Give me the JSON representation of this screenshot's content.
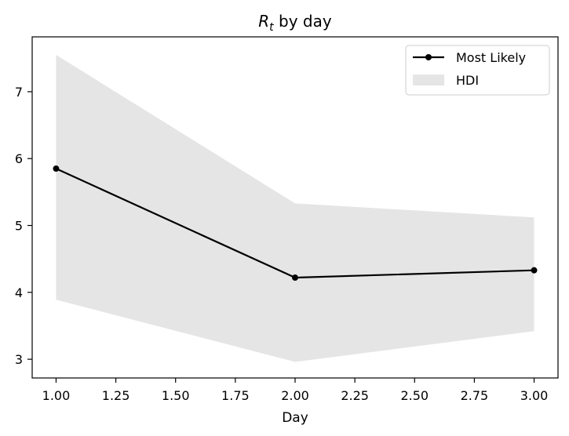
{
  "chart_data": {
    "type": "line",
    "title_main": "R",
    "title_sub": "t",
    "title_rest": " by day",
    "xlabel": "Day",
    "ylabel": "",
    "xlim": [
      0.9,
      3.1
    ],
    "ylim": [
      2.72,
      7.82
    ],
    "xticks": [
      1.0,
      1.25,
      1.5,
      1.75,
      2.0,
      2.25,
      2.5,
      2.75,
      3.0
    ],
    "xtick_labels": [
      "1.00",
      "1.25",
      "1.50",
      "1.75",
      "2.00",
      "2.25",
      "2.50",
      "2.75",
      "3.00"
    ],
    "yticks": [
      3,
      4,
      5,
      6,
      7
    ],
    "ytick_labels": [
      "3",
      "4",
      "5",
      "6",
      "7"
    ],
    "grid": false,
    "legend_position": "top-right",
    "series": [
      {
        "name": "Most Likely",
        "x": [
          1.0,
          2.0,
          3.0
        ],
        "y": [
          5.85,
          4.22,
          4.33
        ],
        "color": "#000000"
      }
    ],
    "bands": [
      {
        "name": "HDI",
        "x": [
          1.0,
          2.0,
          3.0
        ],
        "lower": [
          3.89,
          2.96,
          3.42
        ],
        "upper": [
          7.55,
          5.33,
          5.12
        ],
        "color": "#e5e5e5"
      }
    ]
  }
}
